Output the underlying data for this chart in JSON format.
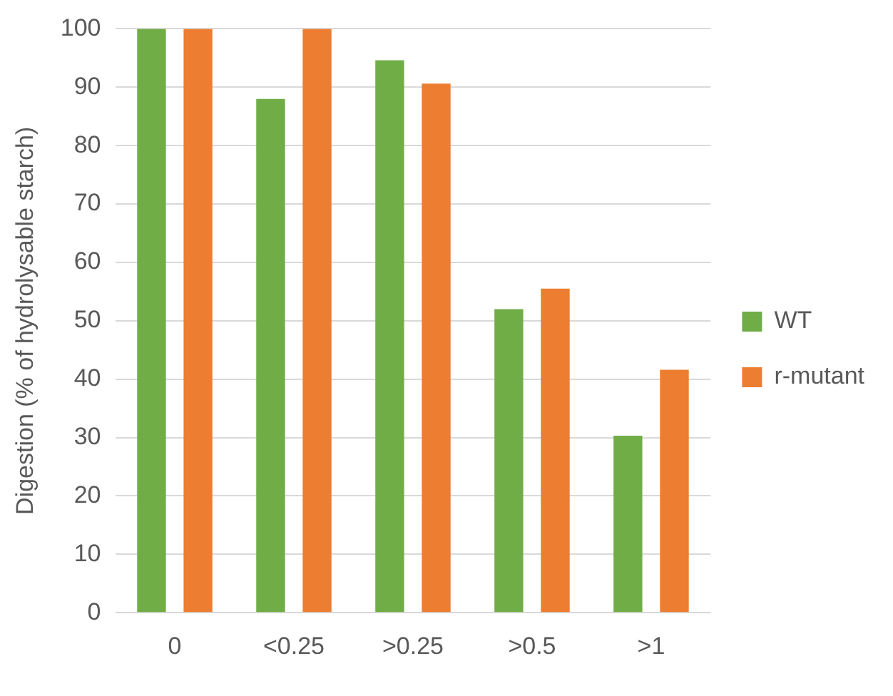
{
  "chart_data": {
    "type": "bar",
    "ylabel": "Digestion (% of hydrolysable starch)",
    "categories": [
      "0",
      "<0.25",
      ">0.25",
      ">0.5",
      ">1"
    ],
    "series": [
      {
        "name": "WT",
        "color": "#70ad47",
        "values": [
          100,
          88,
          94.6,
          52,
          30.3
        ]
      },
      {
        "name": "r-mutant",
        "color": "#ed7d31",
        "values": [
          100,
          100,
          90.6,
          55.5,
          41.6
        ]
      }
    ],
    "ylim": [
      0,
      100
    ],
    "yticks": [
      0,
      10,
      20,
      30,
      40,
      50,
      60,
      70,
      80,
      90,
      100
    ],
    "grid": "y",
    "legend": "right"
  }
}
